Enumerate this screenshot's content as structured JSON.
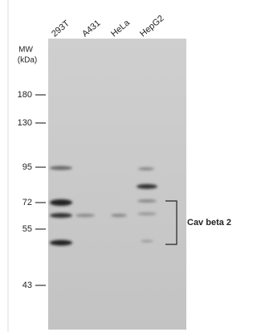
{
  "lanes": [
    "293T",
    "A431",
    "HeLa",
    "HepG2"
  ],
  "mw_label": [
    "MW",
    "(kDa)"
  ],
  "markers": [
    180,
    130,
    95,
    72,
    55,
    43
  ],
  "band_label": "Cav beta 2"
}
